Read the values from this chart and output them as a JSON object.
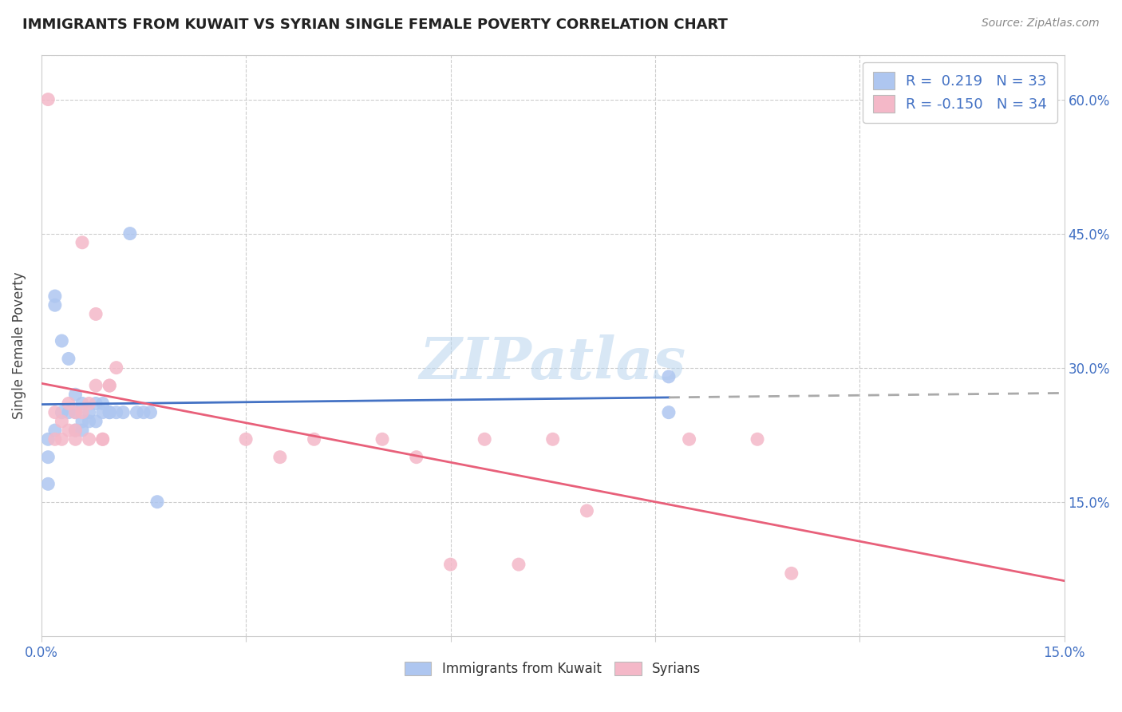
{
  "title": "IMMIGRANTS FROM KUWAIT VS SYRIAN SINGLE FEMALE POVERTY CORRELATION CHART",
  "source": "Source: ZipAtlas.com",
  "ylabel": "Single Female Poverty",
  "ylabel_right_labels": [
    "15.0%",
    "30.0%",
    "45.0%",
    "60.0%"
  ],
  "ylabel_right_positions": [
    0.15,
    0.3,
    0.45,
    0.6
  ],
  "xlim": [
    0.0,
    0.15
  ],
  "ylim": [
    0.0,
    0.65
  ],
  "legend_R1": "0.219",
  "legend_N1": "33",
  "legend_R2": "-0.150",
  "legend_N2": "34",
  "kuwait_color": "#aec6f0",
  "syrian_color": "#f4b8c8",
  "kuwait_line_color": "#4472c4",
  "syrian_line_color": "#e8607a",
  "trend_ext_color": "#aaaaaa",
  "watermark": "ZIPatlas",
  "legend_label1": "Immigrants from Kuwait",
  "legend_label2": "Syrians",
  "kuwait_x": [
    0.001,
    0.001,
    0.001,
    0.002,
    0.002,
    0.002,
    0.003,
    0.003,
    0.004,
    0.004,
    0.005,
    0.005,
    0.005,
    0.006,
    0.006,
    0.006,
    0.007,
    0.007,
    0.008,
    0.008,
    0.009,
    0.009,
    0.01,
    0.01,
    0.011,
    0.012,
    0.013,
    0.014,
    0.015,
    0.016,
    0.017,
    0.092,
    0.092
  ],
  "kuwait_y": [
    0.2,
    0.22,
    0.17,
    0.37,
    0.38,
    0.23,
    0.33,
    0.25,
    0.31,
    0.25,
    0.25,
    0.27,
    0.23,
    0.24,
    0.26,
    0.23,
    0.25,
    0.24,
    0.24,
    0.26,
    0.25,
    0.26,
    0.25,
    0.25,
    0.25,
    0.25,
    0.45,
    0.25,
    0.25,
    0.25,
    0.15,
    0.29,
    0.25
  ],
  "syrian_x": [
    0.001,
    0.002,
    0.002,
    0.003,
    0.003,
    0.004,
    0.004,
    0.005,
    0.005,
    0.005,
    0.006,
    0.006,
    0.007,
    0.007,
    0.008,
    0.008,
    0.009,
    0.009,
    0.01,
    0.01,
    0.011,
    0.03,
    0.035,
    0.04,
    0.05,
    0.055,
    0.06,
    0.065,
    0.07,
    0.075,
    0.08,
    0.095,
    0.105,
    0.11
  ],
  "syrian_y": [
    0.6,
    0.25,
    0.22,
    0.24,
    0.22,
    0.26,
    0.23,
    0.23,
    0.22,
    0.25,
    0.25,
    0.44,
    0.26,
    0.22,
    0.36,
    0.28,
    0.22,
    0.22,
    0.28,
    0.28,
    0.3,
    0.22,
    0.2,
    0.22,
    0.22,
    0.2,
    0.08,
    0.22,
    0.08,
    0.22,
    0.14,
    0.22,
    0.22,
    0.07
  ]
}
